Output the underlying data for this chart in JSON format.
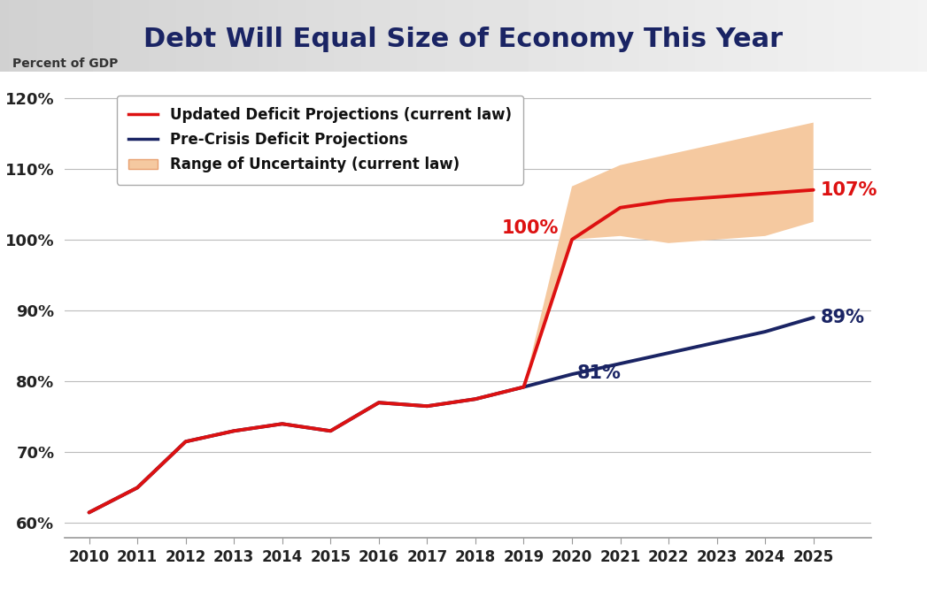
{
  "years_all": [
    2010,
    2011,
    2012,
    2013,
    2014,
    2015,
    2016,
    2017,
    2018,
    2019,
    2020,
    2021,
    2022,
    2023,
    2024,
    2025
  ],
  "updated_all": [
    61.5,
    65.0,
    71.5,
    73.0,
    74.0,
    73.0,
    77.0,
    76.5,
    77.5,
    79.2,
    100.0,
    104.5,
    105.5,
    106.0,
    106.5,
    107.0
  ],
  "pre_crisis_all": [
    61.5,
    65.0,
    71.5,
    73.0,
    74.0,
    73.0,
    77.0,
    76.5,
    77.5,
    79.2,
    81.0,
    82.5,
    84.0,
    85.5,
    87.0,
    89.0
  ],
  "years_proj": [
    2019,
    2020,
    2021,
    2022,
    2023,
    2024,
    2025
  ],
  "uncertainty_upper": [
    79.2,
    107.5,
    110.5,
    112.0,
    113.5,
    115.0,
    116.5
  ],
  "uncertainty_lower": [
    79.2,
    100.0,
    100.5,
    99.5,
    100.0,
    100.5,
    102.5
  ],
  "updated_color": "#dd1111",
  "pre_crisis_color": "#1a2464",
  "uncertainty_fill_color": "#f5c9a0",
  "uncertainty_edge_color": "#e8a070",
  "ylabel": "Percent of GDP",
  "ylim_min": 58,
  "ylim_max": 122,
  "yticks": [
    60,
    70,
    80,
    90,
    100,
    110,
    120
  ],
  "ytick_labels": [
    "60%",
    "70%",
    "80%",
    "90%",
    "100%",
    "110%",
    "120%"
  ],
  "bg_color": "#ffffff",
  "plot_bg_color": "#ffffff",
  "grid_color": "#bbbbbb",
  "legend_updated": "Updated Deficit Projections (current law)",
  "legend_pre_crisis": "Pre-Crisis Deficit Projections",
  "legend_uncertainty": "Range of Uncertainty (current law)",
  "annotation_red_color": "#dd1111",
  "annotation_blue_color": "#1a2464",
  "linewidth_main": 2.8,
  "header_bg": "#e8e8e8",
  "header_title": "Debt Will Equal Size of Economy This Year",
  "header_title_color": "#1a2464"
}
